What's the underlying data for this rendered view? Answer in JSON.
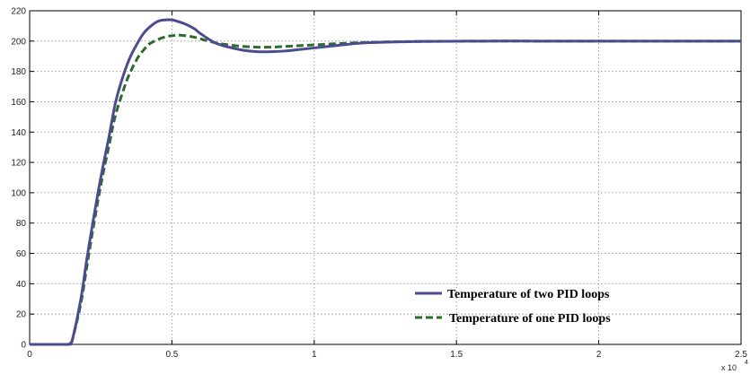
{
  "chart_data": {
    "type": "line",
    "title": "",
    "xlabel": "",
    "ylabel": "",
    "x_exponent_label": "x 10",
    "x_exponent_power": "4",
    "xlim": [
      0,
      2.5
    ],
    "ylim": [
      0,
      220
    ],
    "x_ticks": [
      "0",
      "0.5",
      "1",
      "1.5",
      "2",
      "2.5"
    ],
    "y_ticks": [
      "0",
      "20",
      "40",
      "60",
      "80",
      "100",
      "120",
      "140",
      "160",
      "180",
      "200",
      "220"
    ],
    "grid": true,
    "legend_position": "bottom-right",
    "series": [
      {
        "name": "Temperature of two PID loops",
        "color": "#4b4b8f",
        "style": "solid",
        "x": [
          0,
          0.13,
          0.14,
          0.15,
          0.18,
          0.2,
          0.22,
          0.25,
          0.28,
          0.3,
          0.32,
          0.35,
          0.38,
          0.4,
          0.42,
          0.45,
          0.48,
          0.5,
          0.52,
          0.55,
          0.58,
          0.6,
          0.65,
          0.7,
          0.75,
          0.8,
          0.85,
          0.9,
          0.95,
          1.0,
          1.05,
          1.1,
          1.15,
          1.2,
          1.3,
          1.4,
          1.6,
          1.8,
          2.0,
          2.2,
          2.5
        ],
        "y": [
          0,
          0,
          0.5,
          3,
          30,
          55,
          78,
          110,
          138,
          158,
          172,
          188,
          199,
          205,
          209,
          213,
          214,
          214,
          213,
          211,
          208,
          205,
          199,
          196,
          194,
          193,
          193,
          193.5,
          194.5,
          195.5,
          196.5,
          197.5,
          198.5,
          199,
          199.5,
          199.8,
          200,
          200,
          200,
          200,
          200
        ]
      },
      {
        "name": "Temperature of one PID loops",
        "color": "#2e6b2e",
        "style": "dashed",
        "x": [
          0,
          0.13,
          0.14,
          0.15,
          0.18,
          0.2,
          0.22,
          0.25,
          0.28,
          0.3,
          0.33,
          0.35,
          0.38,
          0.4,
          0.42,
          0.45,
          0.48,
          0.5,
          0.52,
          0.55,
          0.58,
          0.6,
          0.65,
          0.7,
          0.75,
          0.8,
          0.85,
          0.9,
          0.95,
          1.0,
          1.1,
          1.2,
          1.3,
          1.4,
          1.6,
          1.8,
          2.0,
          2.2,
          2.5
        ],
        "y": [
          0,
          0,
          0.5,
          3,
          27,
          50,
          73,
          105,
          132,
          150,
          168,
          178,
          189,
          194,
          198,
          201,
          203,
          203.5,
          204,
          203.5,
          202.5,
          201.5,
          199,
          197.5,
          196.5,
          196,
          196,
          196.5,
          197,
          197.5,
          198.5,
          199.2,
          199.6,
          199.8,
          200,
          200,
          200,
          200,
          200
        ]
      }
    ]
  }
}
